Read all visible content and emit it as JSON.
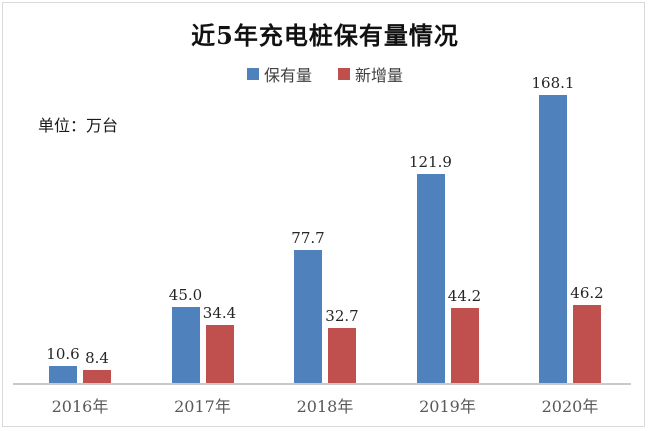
{
  "page": {
    "background": "#ffffff",
    "border_color": "#d9d9d9"
  },
  "chart_data": {
    "type": "bar",
    "title": "近5年充电桩保有量情况",
    "unit_label": "单位：万台",
    "categories": [
      "2016年",
      "2017年",
      "2018年",
      "2019年",
      "2020年"
    ],
    "series": [
      {
        "name": "保有量",
        "color": "#4F81BD",
        "values": [
          10.6,
          45.0,
          77.7,
          121.9,
          168.1
        ]
      },
      {
        "name": "新增量",
        "color": "#C0504D",
        "values": [
          8.4,
          34.4,
          32.7,
          44.2,
          46.2
        ]
      }
    ],
    "value_labels_shown": true,
    "value_decimals": 1,
    "ylim": [
      0,
      175
    ],
    "legend_position": "top-center",
    "gridlines": false,
    "axis_line_color": "#c9c9c9",
    "value_label_color": "#262626",
    "category_label_color": "#595959"
  }
}
